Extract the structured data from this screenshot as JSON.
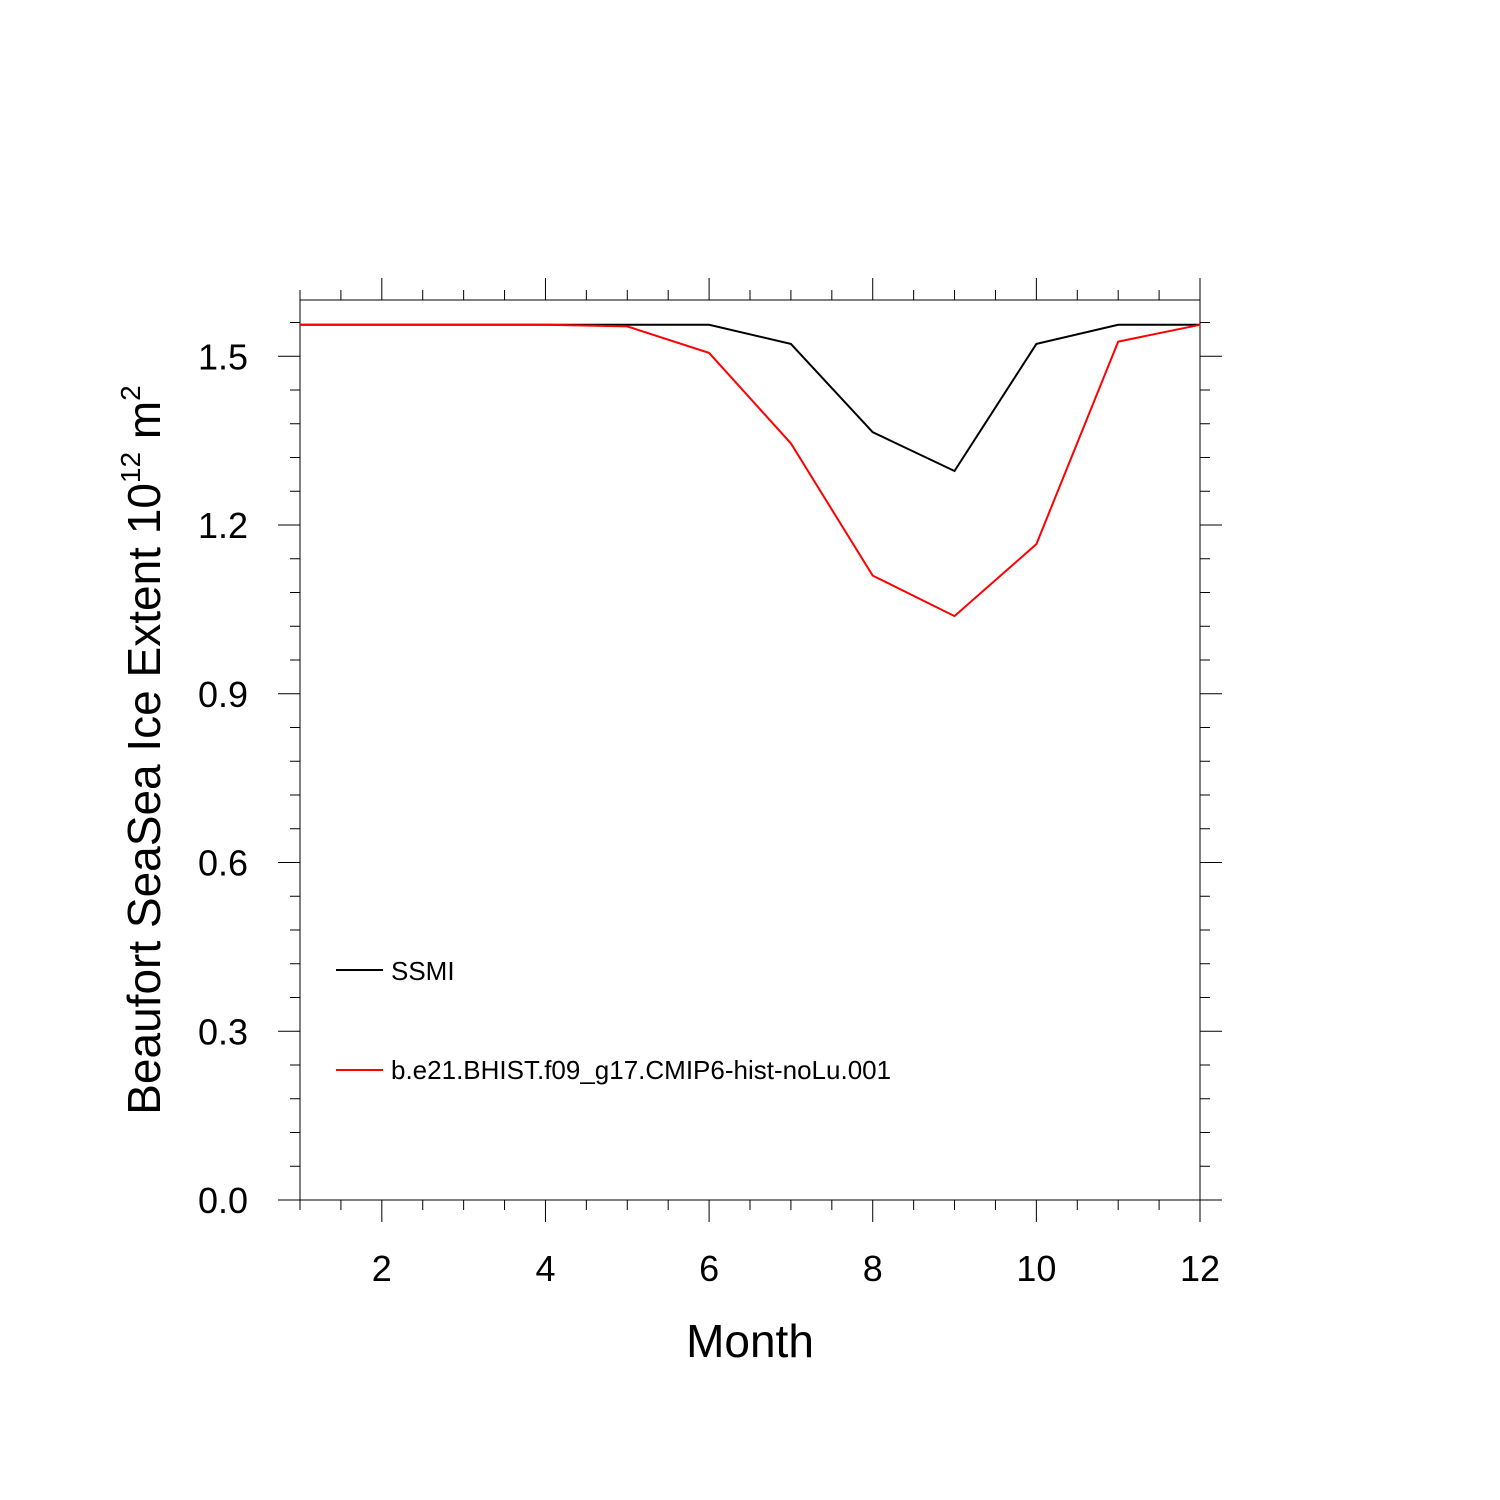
{
  "chart_data": {
    "type": "line",
    "xlabel": "Month",
    "ylabel_main": "Beaufort SeaSea Ice Extent 10",
    "ylabel_sup1": "12",
    "ylabel_mid": " m",
    "ylabel_sup2": "2",
    "xlim": [
      1,
      12
    ],
    "ylim": [
      0,
      1.6
    ],
    "xticks": [
      2,
      4,
      6,
      8,
      10,
      12
    ],
    "yticks": [
      0.0,
      0.3,
      0.6,
      0.9,
      1.2,
      1.5
    ],
    "xtick_labels": [
      "2",
      "4",
      "6",
      "8",
      "10",
      "12"
    ],
    "ytick_labels": [
      "0.0",
      "0.3",
      "0.6",
      "0.9",
      "1.2",
      "1.5"
    ],
    "x": [
      1,
      2,
      3,
      4,
      5,
      6,
      7,
      8,
      9,
      10,
      11,
      12
    ],
    "grid": false,
    "legend_position": "lower-left",
    "series": [
      {
        "name": "SSMI",
        "color": "#000000",
        "values": [
          1.556,
          1.556,
          1.556,
          1.556,
          1.556,
          1.556,
          1.522,
          1.365,
          1.296,
          1.522,
          1.556,
          1.556
        ]
      },
      {
        "name": "b.e21.BHIST.f09_g17.CMIP6-hist-noLu.001",
        "color": "#ff0000",
        "values": [
          1.556,
          1.556,
          1.556,
          1.556,
          1.553,
          1.506,
          1.345,
          1.11,
          1.038,
          1.166,
          1.526,
          1.556
        ]
      }
    ]
  }
}
